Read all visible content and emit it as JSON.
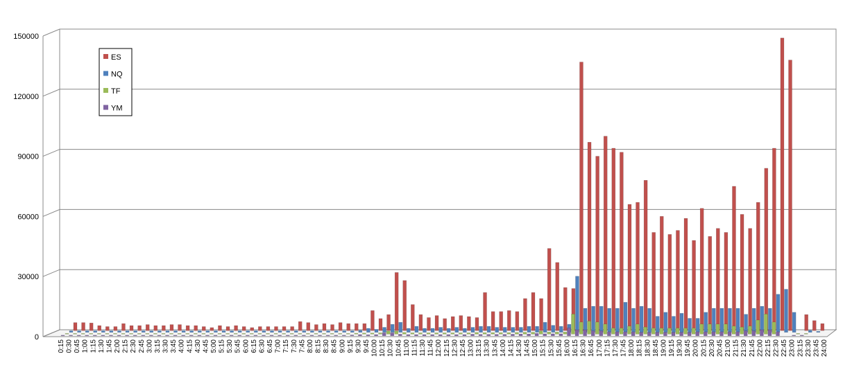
{
  "chart_data": {
    "type": "bar3d",
    "categories": [
      "0:15",
      "0:30",
      "0:45",
      "1:00",
      "1:15",
      "1:30",
      "1:45",
      "2:00",
      "2:15",
      "2:30",
      "2:45",
      "3:00",
      "3:15",
      "3:30",
      "3:45",
      "4:00",
      "4:15",
      "4:30",
      "4:45",
      "5:00",
      "5:15",
      "5:30",
      "5:45",
      "6:00",
      "6:15",
      "6:30",
      "6:45",
      "7:00",
      "7:15",
      "7:30",
      "7:45",
      "8:00",
      "8:15",
      "8:30",
      "8:45",
      "9:00",
      "9:15",
      "9:30",
      "9:45",
      "10:00",
      "10:15",
      "10:30",
      "10:45",
      "11:00",
      "11:15",
      "11:30",
      "11:45",
      "12:00",
      "12:15",
      "12:30",
      "12:45",
      "13:00",
      "13:15",
      "13:30",
      "13:45",
      "14:00",
      "14:15",
      "14:30",
      "14:45",
      "15:00",
      "15:15",
      "15:30",
      "15:45",
      "16:00",
      "16:15",
      "16:30",
      "16:45",
      "17:00",
      "17:15",
      "17:30",
      "17:45",
      "18:00",
      "18:15",
      "18:30",
      "18:45",
      "19:00",
      "19:15",
      "19:30",
      "19:45",
      "20:00",
      "20:15",
      "20:30",
      "20:45",
      "21:00",
      "21:15",
      "21:30",
      "21:45",
      "22:00",
      "22:15",
      "22:30",
      "22:45",
      "23:00",
      "23:15",
      "23:30",
      "23:45",
      "24:00"
    ],
    "series": [
      {
        "name": "YM",
        "color": "#8064a2",
        "values": [
          300,
          300,
          300,
          300,
          300,
          300,
          300,
          300,
          300,
          300,
          300,
          300,
          300,
          300,
          300,
          300,
          300,
          300,
          300,
          300,
          300,
          300,
          300,
          300,
          300,
          300,
          300,
          300,
          300,
          300,
          300,
          300,
          300,
          300,
          300,
          300,
          400,
          600,
          500,
          600,
          1500,
          1500,
          800,
          600,
          600,
          600,
          600,
          600,
          600,
          600,
          600,
          800,
          700,
          700,
          700,
          700,
          800,
          900,
          900,
          1200,
          1000,
          1000,
          1000,
          4000,
          3000,
          3000,
          2500,
          2500,
          2000,
          2000,
          2000,
          2000,
          1800,
          1800,
          1800,
          1800,
          1800,
          1800,
          1800,
          2000,
          2000,
          2000,
          2000,
          2000,
          2000,
          2500,
          2500,
          3000,
          3000,
          2000,
          0,
          300,
          300,
          0,
          0,
          0
        ]
      },
      {
        "name": "TF",
        "color": "#9bbb59",
        "values": [
          300,
          300,
          300,
          300,
          300,
          300,
          300,
          300,
          300,
          300,
          300,
          300,
          300,
          300,
          300,
          300,
          300,
          300,
          300,
          300,
          300,
          300,
          300,
          300,
          300,
          300,
          300,
          300,
          300,
          300,
          300,
          300,
          300,
          300,
          300,
          300,
          400,
          500,
          500,
          600,
          1500,
          1500,
          800,
          600,
          600,
          600,
          600,
          600,
          600,
          600,
          600,
          800,
          700,
          700,
          700,
          700,
          800,
          900,
          900,
          1500,
          1000,
          1000,
          1000,
          10000,
          6000,
          6500,
          6000,
          5000,
          3000,
          3000,
          4000,
          5000,
          3500,
          3000,
          3000,
          3000,
          3000,
          3000,
          3000,
          5000,
          5000,
          5000,
          5000,
          4000,
          3500,
          4000,
          7000,
          10000,
          6000,
          0,
          0,
          300,
          300,
          0,
          0,
          0
        ]
      },
      {
        "name": "NQ",
        "color": "#4f81bd",
        "values": [
          800,
          800,
          800,
          800,
          800,
          800,
          800,
          800,
          800,
          800,
          800,
          800,
          800,
          800,
          800,
          800,
          800,
          800,
          800,
          800,
          800,
          800,
          800,
          800,
          800,
          800,
          800,
          800,
          800,
          800,
          800,
          800,
          800,
          800,
          800,
          800,
          1000,
          2000,
          1500,
          2500,
          4000,
          5000,
          2000,
          3000,
          2000,
          2000,
          2500,
          2000,
          2500,
          2000,
          2500,
          3000,
          3000,
          2500,
          2500,
          2500,
          2500,
          3000,
          3000,
          5000,
          3500,
          3000,
          4000,
          28000,
          12000,
          13000,
          13000,
          12000,
          12000,
          15000,
          12000,
          13000,
          12000,
          8000,
          10000,
          8000,
          9500,
          7000,
          7000,
          10000,
          12000,
          12000,
          12000,
          12000,
          9000,
          12000,
          13000,
          12000,
          19000,
          21500,
          10000,
          0,
          1000,
          500,
          0,
          0
        ]
      },
      {
        "name": "ES",
        "color": "#c0504d",
        "values": [
          4000,
          4000,
          3800,
          2500,
          2000,
          2000,
          3500,
          2500,
          2500,
          3000,
          2500,
          2500,
          3000,
          3000,
          2500,
          2500,
          2000,
          1500,
          2500,
          2000,
          2500,
          2000,
          1500,
          2000,
          2000,
          2000,
          2000,
          2000,
          4500,
          4000,
          3000,
          3500,
          3000,
          4000,
          3500,
          3500,
          3500,
          10000,
          6000,
          8000,
          29000,
          25000,
          13000,
          8000,
          6500,
          7500,
          6000,
          7000,
          7500,
          7000,
          6500,
          19000,
          9500,
          9500,
          10000,
          9500,
          16000,
          19000,
          16000,
          41000,
          34000,
          21500,
          21000,
          134000,
          94000,
          87000,
          97000,
          91000,
          89000,
          63000,
          64000,
          75000,
          49000,
          57000,
          48000,
          50000,
          56000,
          45000,
          61000,
          47000,
          51000,
          49000,
          72000,
          58000,
          51000,
          64000,
          81000,
          91000,
          146000,
          135000,
          0,
          8000,
          5000,
          3500,
          0,
          0
        ]
      }
    ],
    "ylim": [
      0,
      150000
    ],
    "yticks": [
      0,
      30000,
      60000,
      90000,
      120000,
      150000
    ],
    "grid": true,
    "legend": "upper-left"
  }
}
